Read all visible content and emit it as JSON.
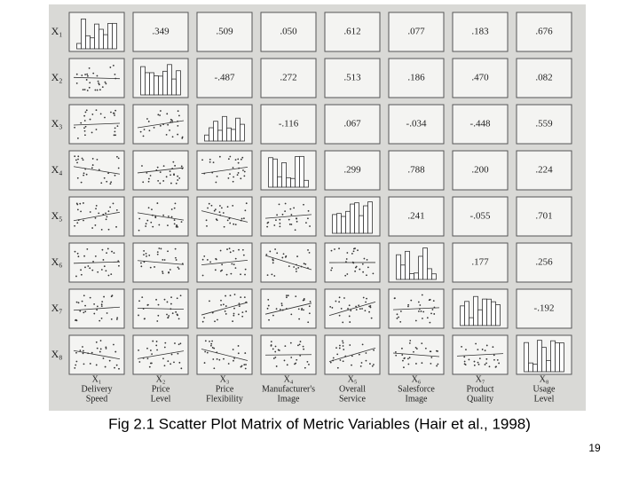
{
  "matrix": {
    "row_labels": [
      "X₁",
      "X₂",
      "X₃",
      "X₄",
      "X₅",
      "X₆",
      "X₇",
      "X₈"
    ],
    "correlations": [
      [
        ".349",
        ".509",
        ".050",
        ".612",
        ".077",
        ".183",
        ".676"
      ],
      [
        "-.487",
        ".272",
        ".513",
        ".186",
        ".470",
        ".082"
      ],
      [
        "-.116",
        ".067",
        "-.034",
        "-.448",
        ".559"
      ],
      [
        ".299",
        ".788",
        ".200",
        ".224"
      ],
      [
        ".241",
        "-.055",
        ".701"
      ],
      [
        ".177",
        ".256"
      ],
      [
        "-.192"
      ]
    ],
    "column_labels": [
      {
        "var": "X₁",
        "name": [
          "Delivery",
          "Speed"
        ]
      },
      {
        "var": "X₂",
        "name": [
          "Price",
          "Level"
        ]
      },
      {
        "var": "X₃",
        "name": [
          "Price",
          "Flexibility"
        ]
      },
      {
        "var": "X₄",
        "name": [
          "Manufacturer's",
          "Image"
        ]
      },
      {
        "var": "X₅",
        "name": [
          "Overall",
          "Service"
        ]
      },
      {
        "var": "X₆",
        "name": [
          "Salesforce",
          "Image"
        ]
      },
      {
        "var": "X₇",
        "name": [
          "Product",
          "Quality"
        ]
      },
      {
        "var": "X₈",
        "name": [
          "Usage",
          "Level"
        ]
      }
    ]
  },
  "caption": "Fig 2.1  Scatter Plot Matrix of Metric Variables (Hair et al., 1998)",
  "page_number": "19"
}
